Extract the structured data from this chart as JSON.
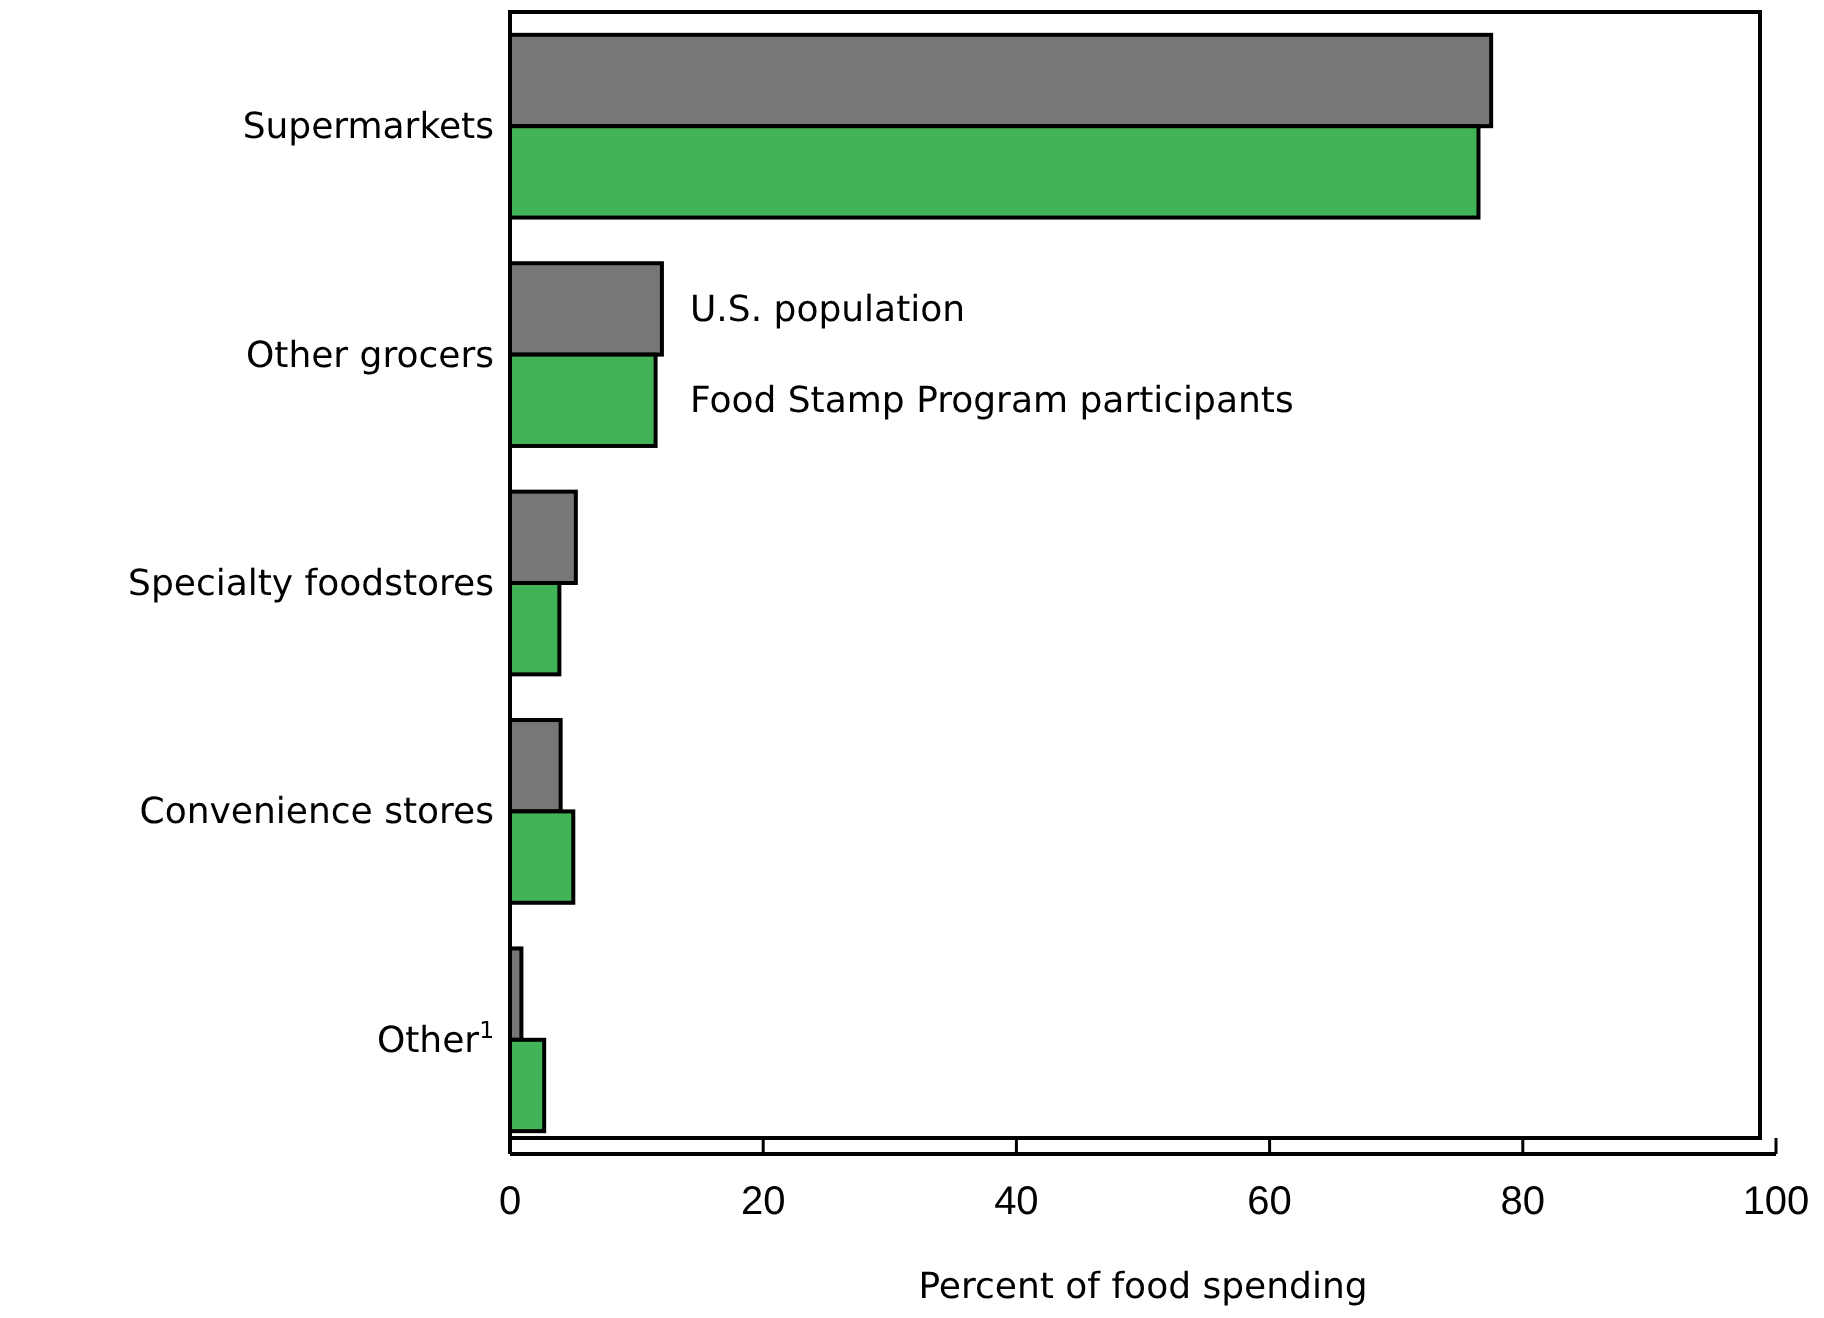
{
  "chart_data": {
    "type": "bar",
    "orientation": "horizontal",
    "xlabel": "Percent of food spending",
    "categories": [
      "Supermarkets",
      "Other grocers",
      "Specialty foodstores",
      "Convenience stores",
      "Other$^{1}$"
    ],
    "series": [
      {
        "name": "U.S. population",
        "color": "#777777",
        "values": [
          77.5,
          12,
          5.2,
          4,
          0.9
        ]
      },
      {
        "name": "Food Stamp Program participants",
        "color": "#42b357",
        "values": [
          76.5,
          11.5,
          3.9,
          5,
          2.7
        ]
      }
    ],
    "xlim": [
      0,
      100
    ],
    "xticks": [
      0,
      20,
      40,
      60,
      80,
      100
    ],
    "grid": false,
    "legend": "top left"
  }
}
